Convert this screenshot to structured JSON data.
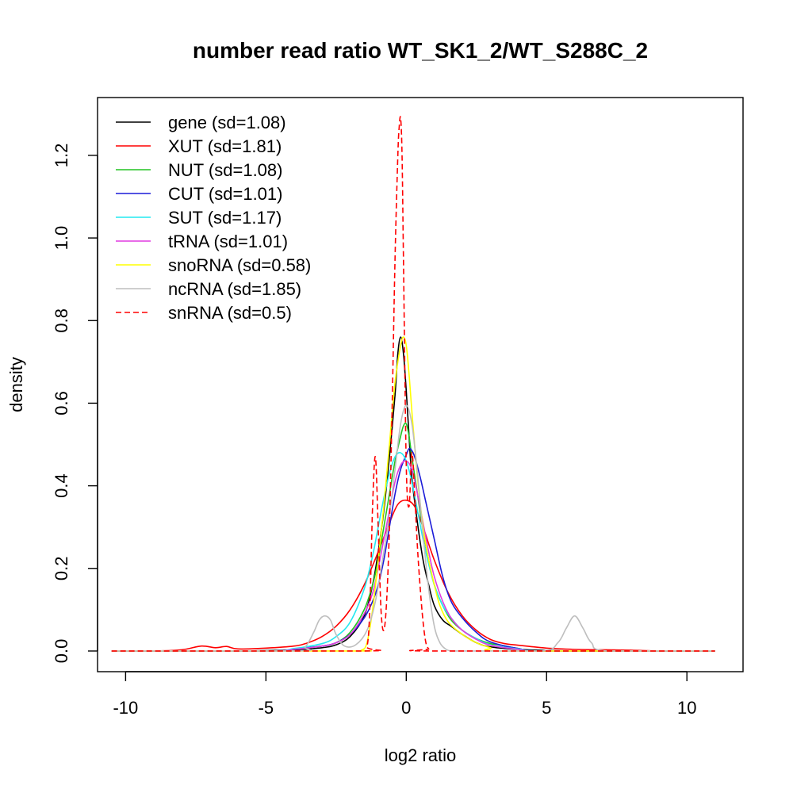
{
  "chart_data": {
    "type": "line",
    "title": "number read ratio WT_SK1_2/WT_S288C_2",
    "xlabel": "log2 ratio",
    "ylabel": "density",
    "xlim": [
      -11,
      12
    ],
    "ylim": [
      -0.05,
      1.34
    ],
    "x_ticks": [
      -10,
      -5,
      0,
      5,
      10
    ],
    "x_tick_labels": [
      "-10",
      "-5",
      "0",
      "5",
      "10"
    ],
    "y_ticks": [
      0.0,
      0.2,
      0.4,
      0.6,
      0.8,
      1.0,
      1.2
    ],
    "y_tick_labels": [
      "0.0",
      "0.2",
      "0.4",
      "0.6",
      "0.8",
      "1.0",
      "1.2"
    ],
    "grid": false,
    "legend_position": "top-left",
    "series": [
      {
        "name": "gene (sd=1.08)",
        "color": "#000000",
        "dash": "solid",
        "x": [
          -10.5,
          -6,
          -4,
          -3,
          -2.5,
          -2,
          -1.5,
          -1.2,
          -1,
          -0.8,
          -0.6,
          -0.4,
          -0.3,
          -0.2,
          -0.1,
          0,
          0.1,
          0.2,
          0.4,
          0.6,
          0.8,
          1,
          1.3,
          1.6,
          2,
          2.5,
          3,
          4,
          6,
          11
        ],
        "y": [
          0,
          0,
          0.003,
          0.008,
          0.015,
          0.035,
          0.085,
          0.16,
          0.24,
          0.34,
          0.47,
          0.62,
          0.72,
          0.76,
          0.72,
          0.63,
          0.52,
          0.42,
          0.31,
          0.22,
          0.16,
          0.11,
          0.075,
          0.06,
          0.04,
          0.02,
          0.01,
          0.004,
          0,
          0
        ]
      },
      {
        "name": "XUT (sd=1.81)",
        "color": "#ff0000",
        "dash": "solid",
        "x": [
          -10.5,
          -9,
          -8,
          -7.3,
          -6.8,
          -6.4,
          -6,
          -5,
          -4,
          -3.5,
          -3,
          -2.5,
          -2,
          -1.5,
          -1,
          -0.6,
          -0.3,
          0,
          0.3,
          0.6,
          1,
          1.5,
          2,
          2.5,
          3,
          3.5,
          4,
          5,
          6,
          7,
          8,
          9,
          11
        ],
        "y": [
          0,
          0,
          0.003,
          0.012,
          0.008,
          0.011,
          0.005,
          0.007,
          0.012,
          0.02,
          0.035,
          0.06,
          0.1,
          0.16,
          0.24,
          0.31,
          0.355,
          0.365,
          0.35,
          0.3,
          0.22,
          0.14,
          0.085,
          0.05,
          0.028,
          0.018,
          0.014,
          0.007,
          0.004,
          0.003,
          0.002,
          0,
          0
        ]
      },
      {
        "name": "NUT (sd=1.08)",
        "color": "#22c422",
        "dash": "solid",
        "x": [
          -10.5,
          -5,
          -4,
          -3,
          -2.5,
          -2,
          -1.5,
          -1.2,
          -1,
          -0.8,
          -0.6,
          -0.4,
          -0.2,
          -0.1,
          0,
          0.1,
          0.2,
          0.4,
          0.6,
          0.8,
          1,
          1.3,
          1.6,
          2,
          2.5,
          3,
          3.3,
          4,
          5,
          11
        ],
        "y": [
          0,
          0,
          0.005,
          0.012,
          0.02,
          0.045,
          0.1,
          0.16,
          0.22,
          0.3,
          0.38,
          0.46,
          0.52,
          0.545,
          0.55,
          0.52,
          0.47,
          0.38,
          0.29,
          0.22,
          0.16,
          0.11,
          0.075,
          0.05,
          0.03,
          0.018,
          0.015,
          0.006,
          0,
          0
        ]
      },
      {
        "name": "CUT (sd=1.01)",
        "color": "#1c1cd8",
        "dash": "solid",
        "x": [
          -10.5,
          -5,
          -4,
          -3,
          -2.5,
          -2,
          -1.5,
          -1.2,
          -1,
          -0.8,
          -0.6,
          -0.4,
          -0.2,
          0,
          0.1,
          0.2,
          0.3,
          0.5,
          0.7,
          1,
          1.3,
          1.6,
          2,
          2.5,
          3,
          4,
          5,
          11
        ],
        "y": [
          0,
          0,
          0.005,
          0.012,
          0.02,
          0.04,
          0.08,
          0.12,
          0.16,
          0.22,
          0.3,
          0.38,
          0.44,
          0.475,
          0.49,
          0.485,
          0.47,
          0.42,
          0.36,
          0.27,
          0.18,
          0.12,
          0.08,
          0.045,
          0.022,
          0.006,
          0,
          0
        ]
      },
      {
        "name": "SUT (sd=1.17)",
        "color": "#22e8f0",
        "dash": "solid",
        "x": [
          -10.5,
          -5,
          -4,
          -3,
          -2.5,
          -2,
          -1.5,
          -1.2,
          -1,
          -0.8,
          -0.6,
          -0.4,
          -0.2,
          0,
          0.2,
          0.4,
          0.6,
          0.8,
          1,
          1.3,
          1.6,
          2,
          2.5,
          3,
          4,
          5,
          11
        ],
        "y": [
          0,
          0,
          0.006,
          0.018,
          0.035,
          0.07,
          0.15,
          0.23,
          0.3,
          0.37,
          0.43,
          0.47,
          0.48,
          0.46,
          0.41,
          0.34,
          0.27,
          0.21,
          0.16,
          0.11,
          0.08,
          0.05,
          0.03,
          0.015,
          0.005,
          0,
          0
        ]
      },
      {
        "name": "tRNA (sd=1.01)",
        "color": "#e03ce0",
        "dash": "solid",
        "x": [
          -10.5,
          -5,
          -4,
          -3,
          -2.5,
          -2,
          -1.5,
          -1.2,
          -1,
          -0.8,
          -0.6,
          -0.4,
          -0.2,
          0,
          0.2,
          0.4,
          0.6,
          0.8,
          1,
          1.3,
          1.6,
          2,
          2.5,
          3,
          4,
          5,
          11
        ],
        "y": [
          0,
          0,
          0.004,
          0.012,
          0.02,
          0.04,
          0.09,
          0.14,
          0.2,
          0.27,
          0.34,
          0.41,
          0.45,
          0.46,
          0.44,
          0.38,
          0.31,
          0.24,
          0.18,
          0.12,
          0.08,
          0.05,
          0.028,
          0.014,
          0.004,
          0,
          0
        ]
      },
      {
        "name": "snoRNA (sd=0.58)",
        "color": "#ffff00",
        "dash": "solid",
        "x": [
          -10.5,
          -2,
          -1.6,
          -1.4,
          -1.2,
          -1,
          -0.8,
          -0.6,
          -0.4,
          -0.2,
          -0.1,
          0,
          0.1,
          0.2,
          0.4,
          0.6,
          0.8,
          1,
          1.2,
          1.5,
          2,
          2.5,
          3,
          3.5,
          11
        ],
        "y": [
          0,
          0,
          0.002,
          0.02,
          0.1,
          0.22,
          0.35,
          0.5,
          0.65,
          0.74,
          0.76,
          0.74,
          0.67,
          0.58,
          0.42,
          0.3,
          0.22,
          0.16,
          0.11,
          0.07,
          0.04,
          0.02,
          0.008,
          0,
          0
        ]
      },
      {
        "name": "ncRNA (sd=1.85)",
        "color": "#bebebe",
        "dash": "solid",
        "x": [
          -10.5,
          -4,
          -3.6,
          -3.3,
          -3.1,
          -2.9,
          -2.7,
          -2.5,
          -2.2,
          -1.8,
          -1.4,
          -1.1,
          -0.8,
          -0.6,
          -0.4,
          -0.2,
          0,
          0.2,
          0.4,
          0.6,
          0.8,
          1,
          1.2,
          1.4,
          1.6,
          2,
          4.8,
          5.4,
          5.7,
          6,
          6.3,
          6.6,
          7.2,
          11
        ],
        "y": [
          0,
          0,
          0.01,
          0.045,
          0.075,
          0.085,
          0.075,
          0.04,
          0.012,
          0.015,
          0.05,
          0.12,
          0.24,
          0.33,
          0.44,
          0.55,
          0.595,
          0.55,
          0.43,
          0.28,
          0.15,
          0.06,
          0.02,
          0.005,
          0,
          0,
          0,
          0.02,
          0.055,
          0.085,
          0.055,
          0.02,
          0,
          0
        ]
      },
      {
        "name": "snRNA (sd=0.5)",
        "color": "#ff0000",
        "dash": "dashed",
        "x": [
          -10.5,
          -1.6,
          -1.4,
          -1.3,
          -1.2,
          -1.1,
          -1.0,
          -0.9,
          -0.8,
          -0.7,
          -0.6,
          -0.5,
          -0.4,
          -0.3,
          -0.25,
          -0.2,
          -0.15,
          -0.1,
          0,
          0.1,
          0.2,
          0.3,
          0.4,
          0.5,
          0.6,
          0.7,
          0.8,
          0.9,
          11
        ],
        "y": [
          0,
          0,
          0.01,
          0.1,
          0.35,
          0.47,
          0.3,
          0.1,
          0.05,
          0.12,
          0.3,
          0.6,
          0.95,
          1.2,
          1.27,
          1.29,
          1.2,
          0.95,
          0.45,
          0.35,
          0.48,
          0.38,
          0.25,
          0.15,
          0.07,
          0.02,
          0.005,
          0,
          0
        ]
      }
    ]
  }
}
